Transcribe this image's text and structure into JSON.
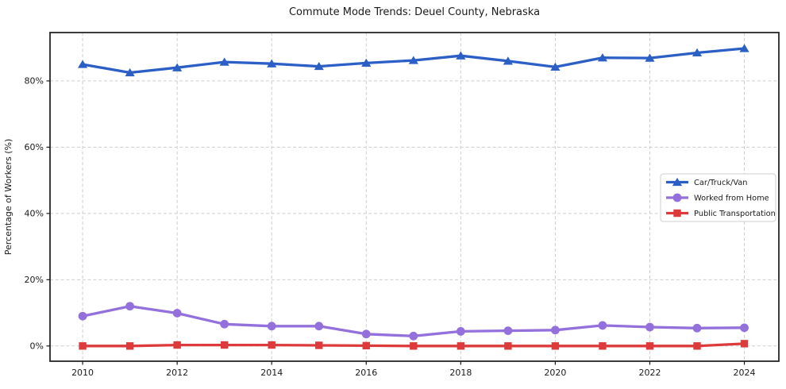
{
  "chart_data": {
    "type": "line",
    "title": "Commute Mode Trends: Deuel County, Nebraska",
    "xlabel": "",
    "ylabel": "Percentage of Workers (%)",
    "x": [
      2010,
      2011,
      2012,
      2013,
      2014,
      2015,
      2016,
      2017,
      2018,
      2019,
      2020,
      2021,
      2022,
      2023,
      2024
    ],
    "x_ticks": [
      2010,
      2012,
      2014,
      2016,
      2018,
      2020,
      2022,
      2024
    ],
    "x_tick_labels": [
      "2010",
      "2012",
      "2014",
      "2016",
      "2018",
      "2020",
      "2022",
      "2024"
    ],
    "y_ticks": [
      0,
      20,
      40,
      60,
      80
    ],
    "y_tick_labels": [
      "0%",
      "20%",
      "40%",
      "60%",
      "80%"
    ],
    "xlim": [
      2009.31,
      2024.73
    ],
    "ylim": [
      -4.6,
      94.6
    ],
    "grid": true,
    "grid_style": "dashed",
    "legend_position": "center right",
    "series": [
      {
        "name": "Car/Truck/Van",
        "color": "#2b5fc6",
        "marker": "triangle",
        "values": [
          85.0,
          82.5,
          84.0,
          85.7,
          85.2,
          84.4,
          85.4,
          86.2,
          87.6,
          86.0,
          84.2,
          87.0,
          86.9,
          88.5,
          89.8
        ]
      },
      {
        "name": "Worked from Home",
        "color": "#9370db",
        "marker": "circle",
        "values": [
          9.0,
          12.0,
          9.9,
          6.6,
          6.0,
          6.0,
          3.6,
          3.0,
          4.4,
          4.6,
          4.8,
          6.2,
          5.7,
          5.4,
          5.5
        ]
      },
      {
        "name": "Public Transportation",
        "color": "#dd3b3b",
        "marker": "square",
        "values": [
          0.0,
          0.0,
          0.3,
          0.3,
          0.3,
          0.2,
          0.1,
          0.0,
          0.0,
          0.0,
          0.0,
          0.0,
          0.0,
          0.0,
          0.7
        ]
      }
    ],
    "colors": {
      "grid": "#cdcdcd",
      "spine": "#1a1a1a",
      "background": "#ffffff",
      "legend_border": "#cfcfcf"
    }
  }
}
